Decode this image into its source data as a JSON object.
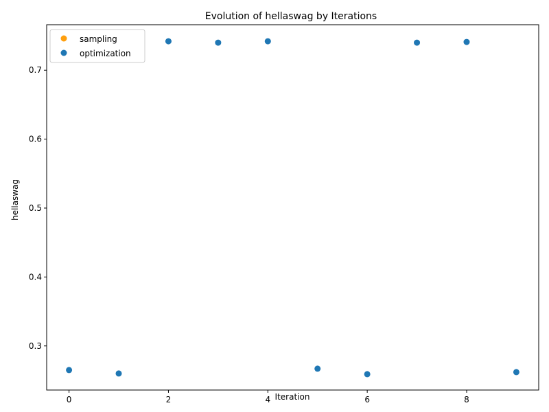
{
  "chart_data": {
    "type": "scatter",
    "title": "Evolution of hellaswag by Iterations",
    "xlabel": "Iteration",
    "ylabel": "hellaswag",
    "xlim": [
      -0.45,
      9.45
    ],
    "ylim": [
      0.236,
      0.766
    ],
    "xticks": [
      0,
      2,
      4,
      6,
      8
    ],
    "yticks": [
      0.3,
      0.4,
      0.5,
      0.6,
      0.7
    ],
    "grid": false,
    "legend_position": "upper left",
    "series": [
      {
        "name": "sampling",
        "color": "#ff9f0e",
        "x": [],
        "y": []
      },
      {
        "name": "optimization",
        "color": "#1f77b4",
        "x": [
          0,
          1,
          2,
          3,
          4,
          5,
          6,
          7,
          8,
          9
        ],
        "y": [
          0.265,
          0.26,
          0.742,
          0.74,
          0.742,
          0.267,
          0.259,
          0.74,
          0.741,
          0.262
        ]
      }
    ]
  }
}
